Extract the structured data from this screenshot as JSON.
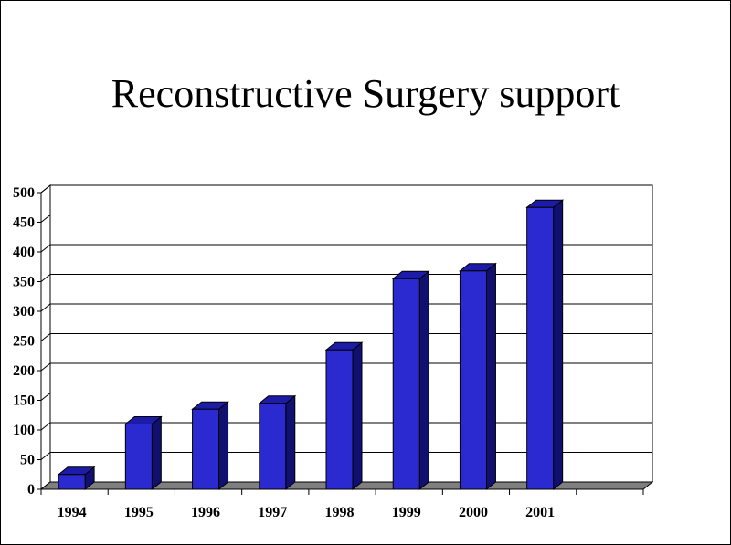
{
  "title": "Reconstructive Surgery support",
  "colors": {
    "bar_front": "#2a2ad0",
    "bar_top": "#1c1ca8",
    "bar_side": "#101070",
    "floor": "#7f7f7f",
    "grid": "#000000"
  },
  "chart_data": {
    "type": "bar",
    "title": "Reconstructive Surgery support",
    "xlabel": "",
    "ylabel": "",
    "categories": [
      "1994",
      "1995",
      "1996",
      "1997",
      "1998",
      "1999",
      "2000",
      "2001"
    ],
    "values": [
      25,
      110,
      135,
      145,
      235,
      355,
      368,
      475
    ],
    "ylim": [
      0,
      500
    ],
    "yticks": [
      "0",
      "50",
      "100",
      "150",
      "200",
      "250",
      "300",
      "350",
      "400",
      "450",
      "500"
    ],
    "grid": true,
    "three_d": true
  }
}
